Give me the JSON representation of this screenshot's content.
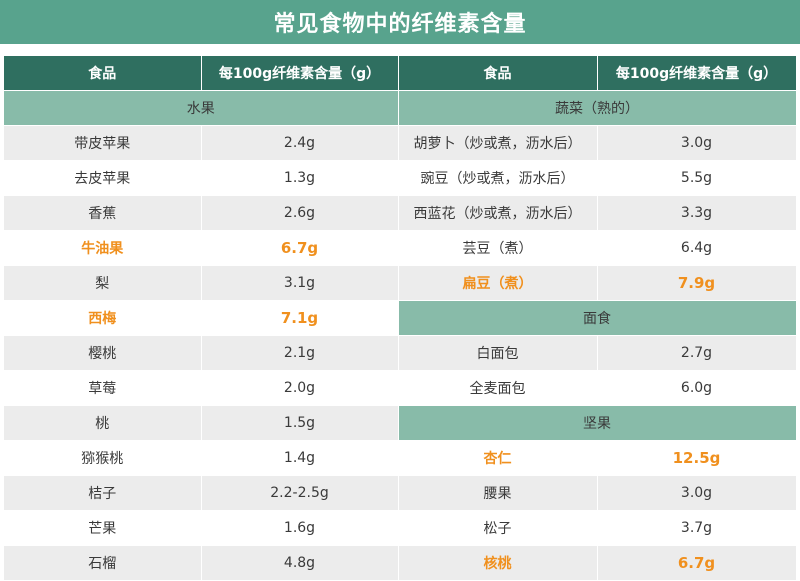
{
  "title": "常见食物中的纤维素含量",
  "headers": {
    "food": "食品",
    "content": "每100g纤维素含量（g）"
  },
  "sections": {
    "fruit": "水果",
    "veg": "蔬菜（熟的）",
    "noodle": "面食",
    "nuts": "坚果"
  },
  "rows": {
    "left": [
      {
        "name": "带皮苹果",
        "value": "2.4g",
        "highlight": false
      },
      {
        "name": "去皮苹果",
        "value": "1.3g",
        "highlight": false
      },
      {
        "name": "香蕉",
        "value": "2.6g",
        "highlight": false
      },
      {
        "name": "牛油果",
        "value": "6.7g",
        "highlight": true
      },
      {
        "name": "梨",
        "value": "3.1g",
        "highlight": false
      },
      {
        "name": "西梅",
        "value": "7.1g",
        "highlight": true
      },
      {
        "name": "樱桃",
        "value": "2.1g",
        "highlight": false
      },
      {
        "name": "草莓",
        "value": "2.0g",
        "highlight": false
      },
      {
        "name": "桃",
        "value": "1.5g",
        "highlight": false
      },
      {
        "name": "猕猴桃",
        "value": "1.4g",
        "highlight": false
      },
      {
        "name": "桔子",
        "value": "2.2-2.5g",
        "highlight": false
      },
      {
        "name": "芒果",
        "value": "1.6g",
        "highlight": false
      },
      {
        "name": "石榴",
        "value": "4.8g",
        "highlight": false
      }
    ],
    "veg": [
      {
        "name": "胡萝卜（炒或煮，沥水后）",
        "value": "3.0g",
        "highlight": false
      },
      {
        "name": "豌豆（炒或煮，沥水后）",
        "value": "5.5g",
        "highlight": false
      },
      {
        "name": "西蓝花（炒或煮，沥水后）",
        "value": "3.3g",
        "highlight": false
      },
      {
        "name": "芸豆（煮）",
        "value": "6.4g",
        "highlight": false
      },
      {
        "name": "扁豆（煮）",
        "value": "7.9g",
        "highlight": true
      }
    ],
    "noodle": [
      {
        "name": "白面包",
        "value": "2.7g",
        "highlight": false
      },
      {
        "name": "全麦面包",
        "value": "6.0g",
        "highlight": false
      }
    ],
    "nuts": [
      {
        "name": "杏仁",
        "value": "12.5g",
        "highlight": true
      },
      {
        "name": "腰果",
        "value": "3.0g",
        "highlight": false
      },
      {
        "name": "松子",
        "value": "3.7g",
        "highlight": false
      },
      {
        "name": "核桃",
        "value": "6.7g",
        "highlight": true
      }
    ]
  }
}
